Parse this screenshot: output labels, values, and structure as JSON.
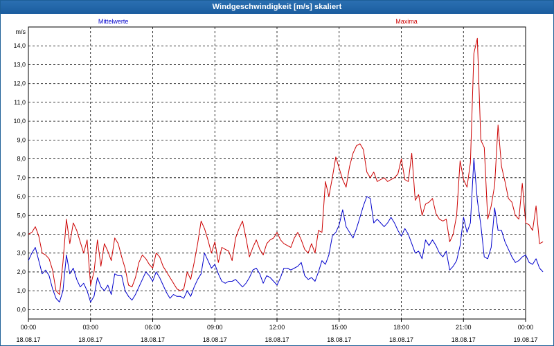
{
  "window": {
    "title": "Windgeschwindigkeit [m/s] skaliert"
  },
  "chart_data": {
    "type": "line",
    "title": "Windgeschwindigkeit [m/s] skaliert",
    "ylabel": "m/s",
    "xlabel": "",
    "ylim": [
      -0.5,
      15.0
    ],
    "y_ticks": [
      0.0,
      1.0,
      2.0,
      3.0,
      4.0,
      5.0,
      6.0,
      7.0,
      8.0,
      9.0,
      10.0,
      11.0,
      12.0,
      13.0,
      14.0
    ],
    "y_tick_labels": [
      "0,0",
      "1,0",
      "2,0",
      "3,0",
      "4,0",
      "5,0",
      "6,0",
      "7,0",
      "8,0",
      "9,0",
      "10,0",
      "11,0",
      "12,0",
      "13,0",
      "14,0"
    ],
    "x_range_hours": [
      0,
      24
    ],
    "x_ticks": [
      {
        "hours": 0,
        "time": "00:00",
        "date": "18.08.17"
      },
      {
        "hours": 3,
        "time": "03:00",
        "date": "18.08.17"
      },
      {
        "hours": 6,
        "time": "06:00",
        "date": "18.08.17"
      },
      {
        "hours": 9,
        "time": "09:00",
        "date": "18.08.17"
      },
      {
        "hours": 12,
        "time": "12:00",
        "date": "18.08.17"
      },
      {
        "hours": 15,
        "time": "15:00",
        "date": "18.08.17"
      },
      {
        "hours": 18,
        "time": "18:00",
        "date": "18.08.17"
      },
      {
        "hours": 21,
        "time": "21:00",
        "date": "18.08.17"
      },
      {
        "hours": 24,
        "time": "00:00",
        "date": "19.08.17"
      }
    ],
    "grid": true,
    "sample_interval_hours": 0.1667,
    "series": [
      {
        "name": "Mittelwerte",
        "color": "#0000cc",
        "values": [
          2.6,
          3.0,
          3.3,
          2.6,
          1.9,
          2.1,
          1.8,
          1.1,
          0.6,
          0.4,
          1.0,
          2.9,
          1.9,
          2.2,
          1.6,
          1.2,
          1.4,
          1.0,
          0.4,
          0.7,
          1.7,
          1.2,
          1.0,
          1.3,
          0.8,
          1.9,
          1.8,
          1.8,
          1.0,
          0.7,
          0.5,
          0.8,
          1.2,
          1.6,
          2.0,
          1.8,
          1.5,
          2.0,
          1.7,
          1.3,
          0.9,
          0.6,
          0.8,
          0.7,
          0.7,
          0.6,
          1.0,
          0.7,
          1.2,
          1.6,
          1.9,
          3.0,
          2.6,
          2.2,
          2.4,
          1.9,
          1.5,
          1.4,
          1.5,
          1.5,
          1.6,
          1.4,
          1.2,
          1.4,
          1.7,
          2.1,
          2.2,
          1.9,
          1.4,
          1.8,
          1.7,
          1.5,
          1.3,
          1.7,
          2.2,
          2.2,
          2.1,
          2.2,
          2.3,
          2.5,
          1.8,
          1.6,
          1.7,
          1.5,
          2.0,
          2.6,
          2.4,
          2.9,
          3.9,
          4.1,
          4.5,
          5.3,
          4.4,
          4.1,
          3.8,
          4.3,
          4.9,
          5.5,
          6.0,
          5.9,
          4.6,
          4.8,
          4.6,
          4.4,
          4.6,
          4.9,
          4.6,
          4.2,
          3.9,
          4.3,
          4.0,
          3.5,
          3.0,
          3.1,
          2.7,
          3.7,
          3.4,
          3.7,
          3.4,
          3.0,
          2.8,
          3.1,
          2.1,
          2.3,
          2.6,
          3.4,
          4.9,
          4.1,
          4.6,
          8.0,
          5.8,
          4.5,
          2.8,
          2.7,
          3.3,
          5.4,
          4.2,
          4.2,
          3.6,
          3.2,
          2.8,
          2.5,
          2.6,
          2.8,
          2.9,
          2.5,
          2.4,
          2.7,
          2.2,
          2.0
        ]
      },
      {
        "name": "Maxima",
        "color": "#cc0000",
        "values": [
          4.0,
          4.1,
          4.4,
          3.9,
          3.0,
          2.9,
          2.7,
          2.1,
          1.0,
          0.8,
          2.5,
          4.8,
          3.5,
          4.6,
          4.2,
          3.6,
          3.0,
          3.7,
          1.3,
          2.0,
          3.7,
          2.3,
          3.5,
          3.1,
          2.6,
          3.8,
          3.5,
          2.8,
          2.2,
          1.3,
          1.2,
          1.7,
          2.5,
          2.9,
          2.7,
          2.4,
          2.2,
          3.0,
          2.8,
          2.3,
          2.0,
          1.7,
          1.4,
          1.1,
          1.0,
          1.1,
          2.0,
          1.6,
          2.5,
          3.5,
          4.7,
          4.3,
          3.7,
          3.0,
          3.6,
          2.5,
          3.3,
          3.2,
          3.1,
          2.6,
          3.8,
          4.3,
          4.7,
          3.8,
          2.8,
          3.3,
          3.7,
          3.2,
          2.9,
          3.5,
          3.7,
          3.8,
          4.1,
          3.7,
          3.5,
          3.4,
          3.3,
          3.8,
          4.1,
          3.7,
          3.2,
          3.0,
          3.5,
          3.0,
          4.2,
          4.1,
          6.8,
          6.0,
          7.0,
          8.1,
          7.5,
          6.9,
          6.5,
          7.6,
          8.3,
          8.7,
          8.8,
          8.5,
          7.3,
          7.0,
          7.3,
          6.8,
          6.9,
          7.0,
          6.8,
          6.9,
          7.0,
          7.2,
          8.0,
          6.9,
          6.8,
          8.3,
          5.8,
          6.1,
          5.0,
          5.6,
          5.7,
          5.9,
          5.1,
          4.8,
          4.7,
          4.8,
          3.6,
          4.0,
          5.0,
          7.9,
          6.9,
          6.5,
          7.8,
          13.6,
          14.4,
          9.0,
          8.6,
          4.8,
          5.5,
          6.6,
          9.8,
          7.6,
          6.8,
          5.9,
          5.7,
          5.0,
          4.8,
          6.7,
          4.6,
          4.5,
          4.2,
          5.5,
          3.5,
          3.6
        ]
      }
    ]
  }
}
